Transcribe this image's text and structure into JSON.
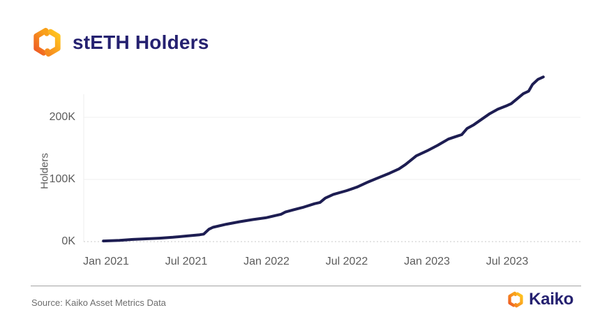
{
  "header": {
    "title": "stETH Holders"
  },
  "icons": {
    "kaiko_logo": "hexagonal-ring-of-two-interlocking-orange-yellow-segments"
  },
  "colors": {
    "title_navy": "#252170",
    "line_navy": "#1d1d52",
    "axis_text_gray": "#5c5c5c",
    "gridline_gray": "#efefef",
    "zero_line_gray": "#c9c9c9",
    "brand_yellow": "#ffc31f",
    "brand_orange": "#f68b1f",
    "brand_deep_orange": "#ee5a24"
  },
  "chart_data": {
    "type": "line",
    "title": "stETH Holders",
    "xlabel": "",
    "ylabel": "Holders",
    "x_tick_labels": [
      "Jan 2021",
      "Jul 2021",
      "Jan 2022",
      "Jul 2022",
      "Jan 2023",
      "Jul 2023"
    ],
    "y_tick_labels": [
      "0K",
      "100K",
      "200K"
    ],
    "x_tick_months_since_jan_2021": [
      0,
      6,
      12,
      18,
      24,
      30
    ],
    "ylim_thousands": [
      0,
      280
    ],
    "grid": "horizontal-only, zero line dotted",
    "legend": "none",
    "line_color": "#1d1d52",
    "series": [
      {
        "name": "stETH Holders",
        "units": "thousands of holders",
        "x_months_since_jan_2021": [
          -0.2,
          1,
          2,
          3,
          4,
          5,
          6,
          7,
          7.3,
          7.7,
          8,
          9,
          10,
          11,
          12,
          12.7,
          13.1,
          13.4,
          14,
          14.7,
          15.6,
          16.0,
          16.4,
          17,
          18,
          18.8,
          19.6,
          20.4,
          21.2,
          21.9,
          22.4,
          23.2,
          24,
          24.8,
          25.6,
          26.3,
          26.6,
          27.0,
          27.5,
          28.1,
          28.7,
          29.3,
          30,
          30.3,
          30.7,
          31.2,
          31.6,
          31.9,
          32.3,
          32.7
        ],
        "holders_thousands": [
          1,
          2,
          3.5,
          4.5,
          5.5,
          7,
          9,
          11,
          12,
          20,
          23,
          28,
          32,
          35.5,
          38.5,
          42,
          44,
          47.5,
          51,
          55,
          61,
          63,
          70,
          76,
          82,
          88,
          96,
          103,
          110,
          117,
          124,
          138,
          146,
          155,
          165,
          170,
          172,
          182,
          188,
          197,
          206,
          213,
          219,
          222,
          229,
          238,
          242,
          253,
          261,
          265
        ]
      }
    ]
  },
  "footer": {
    "source": "Source: Kaiko Asset Metrics Data",
    "brand": "Kaiko"
  }
}
